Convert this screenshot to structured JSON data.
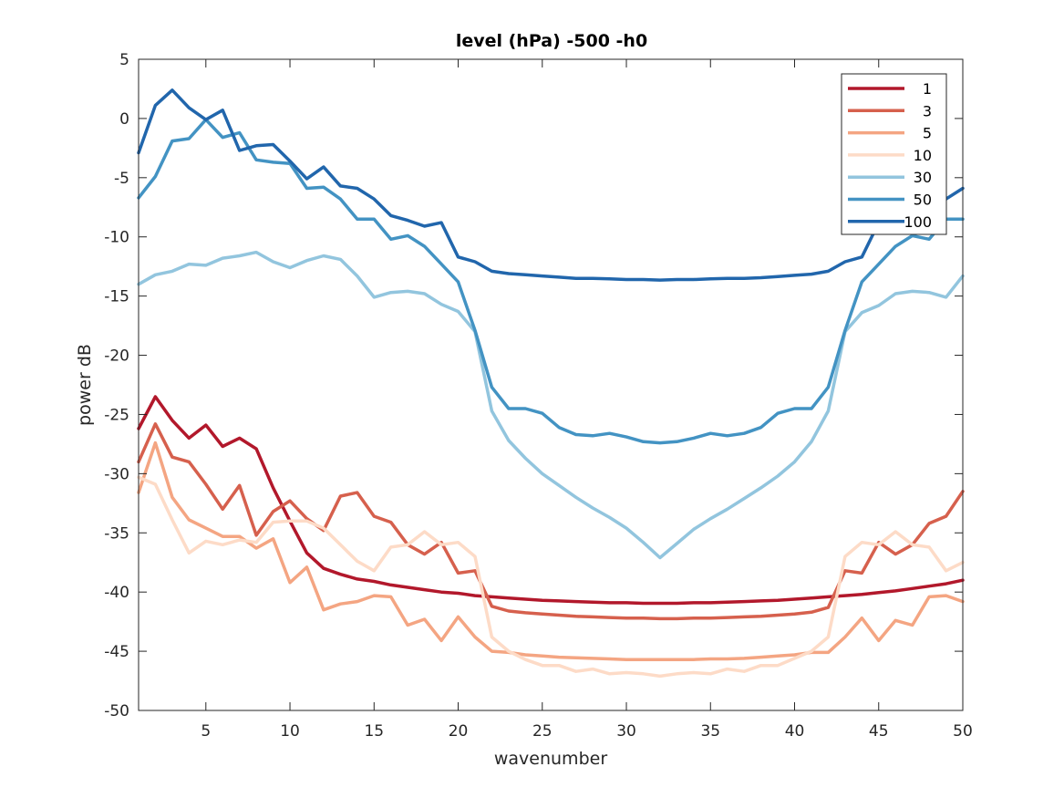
{
  "chart_data": {
    "type": "line",
    "title": "level (hPa) -500 -h0",
    "xlabel": "wavenumber",
    "ylabel": "power dB",
    "xlim": [
      1,
      50
    ],
    "ylim": [
      -50,
      5
    ],
    "xticks": [
      5,
      10,
      15,
      20,
      25,
      30,
      35,
      40,
      45,
      50
    ],
    "yticks": [
      5,
      0,
      -5,
      -10,
      -15,
      -20,
      -25,
      -30,
      -35,
      -40,
      -45,
      -50
    ],
    "grid": false,
    "legend_position": "top-right",
    "x": [
      1,
      2,
      3,
      4,
      5,
      6,
      7,
      8,
      9,
      10,
      11,
      12,
      13,
      14,
      15,
      16,
      17,
      18,
      19,
      20,
      21,
      22,
      23,
      24,
      25,
      26,
      27,
      28,
      29,
      30,
      31,
      32,
      33,
      34,
      35,
      36,
      37,
      38,
      39,
      40,
      41,
      42,
      43,
      44,
      45,
      46,
      47,
      48,
      49,
      50
    ],
    "series": [
      {
        "name": "1",
        "color": "#b2182b",
        "values": [
          -26.2,
          -23.5,
          -25.5,
          -27.0,
          -25.9,
          -27.7,
          -27.0,
          -27.9,
          -31.2,
          -34.0,
          -36.7,
          -38.0,
          -38.5,
          -38.9,
          -39.1,
          -39.4,
          -39.6,
          -39.8,
          -40.0,
          -40.1,
          -40.3,
          -40.4,
          -40.5,
          -40.6,
          -40.7,
          -40.75,
          -40.8,
          -40.85,
          -40.9,
          -40.9,
          -40.95,
          -40.95,
          -40.95,
          -40.9,
          -40.9,
          -40.85,
          -40.8,
          -40.75,
          -40.7,
          -40.6,
          -40.5,
          -40.4,
          -40.3,
          -40.2,
          -40.05,
          -39.9,
          -39.7,
          -39.5,
          -39.3,
          -39.0
        ]
      },
      {
        "name": "3",
        "color": "#d6604d",
        "values": [
          -29.0,
          -25.8,
          -28.6,
          -29.0,
          -30.9,
          -33.0,
          -31.0,
          -35.2,
          -33.2,
          -32.3,
          -33.8,
          -34.8,
          -31.9,
          -31.6,
          -33.6,
          -34.1,
          -36.0,
          -36.8,
          -35.8,
          -38.4,
          -38.2,
          -41.2,
          -41.6,
          -41.75,
          -41.85,
          -41.95,
          -42.05,
          -42.1,
          -42.15,
          -42.2,
          -42.2,
          -42.25,
          -42.25,
          -42.2,
          -42.2,
          -42.15,
          -42.1,
          -42.05,
          -41.95,
          -41.85,
          -41.7,
          -41.3,
          -38.2,
          -38.4,
          -35.8,
          -36.8,
          -36.0,
          -34.2,
          -33.6,
          -31.5
        ]
      },
      {
        "name": "5",
        "color": "#f4a582",
        "values": [
          -31.6,
          -27.4,
          -32.0,
          -33.9,
          -34.6,
          -35.3,
          -35.3,
          -36.3,
          -35.5,
          -39.2,
          -37.9,
          -41.5,
          -41.0,
          -40.8,
          -40.3,
          -40.4,
          -42.8,
          -42.3,
          -44.1,
          -42.1,
          -43.8,
          -45.0,
          -45.1,
          -45.3,
          -45.4,
          -45.5,
          -45.55,
          -45.6,
          -45.65,
          -45.7,
          -45.7,
          -45.7,
          -45.7,
          -45.7,
          -45.65,
          -45.65,
          -45.6,
          -45.5,
          -45.4,
          -45.3,
          -45.1,
          -45.1,
          -43.8,
          -42.2,
          -44.1,
          -42.4,
          -42.8,
          -40.4,
          -40.3,
          -40.8
        ]
      },
      {
        "name": "10",
        "color": "#fddbc7",
        "values": [
          -30.3,
          -30.9,
          -33.9,
          -36.7,
          -35.7,
          -36.0,
          -35.6,
          -35.8,
          -34.1,
          -34.0,
          -34.0,
          -34.6,
          -36.0,
          -37.4,
          -38.2,
          -36.2,
          -36.0,
          -34.9,
          -36.0,
          -35.8,
          -37.0,
          -43.8,
          -45.0,
          -45.7,
          -46.2,
          -46.2,
          -46.7,
          -46.5,
          -46.9,
          -46.8,
          -46.9,
          -47.1,
          -46.9,
          -46.8,
          -46.9,
          -46.5,
          -46.7,
          -46.2,
          -46.2,
          -45.6,
          -45.0,
          -43.8,
          -37.0,
          -35.8,
          -36.0,
          -34.9,
          -36.0,
          -36.2,
          -38.2,
          -37.5
        ]
      },
      {
        "name": "30",
        "color": "#92c5de",
        "values": [
          -14.0,
          -13.2,
          -12.9,
          -12.3,
          -12.4,
          -11.8,
          -11.6,
          -11.3,
          -12.1,
          -12.6,
          -12.0,
          -11.6,
          -11.9,
          -13.3,
          -15.1,
          -14.7,
          -14.6,
          -14.8,
          -15.7,
          -16.3,
          -18.0,
          -24.7,
          -27.2,
          -28.7,
          -30.0,
          -31.0,
          -32.0,
          -32.9,
          -33.7,
          -34.6,
          -35.8,
          -37.1,
          -35.9,
          -34.7,
          -33.8,
          -33.0,
          -32.1,
          -31.2,
          -30.2,
          -29.0,
          -27.3,
          -24.7,
          -18.0,
          -16.4,
          -15.8,
          -14.8,
          -14.6,
          -14.7,
          -15.1,
          -13.3
        ]
      },
      {
        "name": "50",
        "color": "#4393c3",
        "values": [
          -6.7,
          -4.9,
          -1.9,
          -1.7,
          -0.1,
          -1.6,
          -1.2,
          -3.5,
          -3.7,
          -3.8,
          -5.9,
          -5.8,
          -6.8,
          -8.5,
          -8.5,
          -10.2,
          -9.9,
          -10.8,
          -12.3,
          -13.8,
          -17.9,
          -22.7,
          -24.5,
          -24.5,
          -24.9,
          -26.1,
          -26.7,
          -26.8,
          -26.6,
          -26.9,
          -27.3,
          -27.4,
          -27.3,
          -27.0,
          -26.6,
          -26.8,
          -26.6,
          -26.1,
          -24.9,
          -24.5,
          -24.5,
          -22.7,
          -17.9,
          -13.8,
          -12.3,
          -10.8,
          -9.9,
          -10.2,
          -8.5,
          -8.5
        ]
      },
      {
        "name": "100",
        "color": "#2166ac",
        "values": [
          -2.9,
          1.1,
          2.4,
          0.9,
          -0.1,
          0.7,
          -2.7,
          -2.3,
          -2.2,
          -3.6,
          -5.1,
          -4.1,
          -5.7,
          -5.9,
          -6.8,
          -8.2,
          -8.6,
          -9.1,
          -8.8,
          -11.7,
          -12.1,
          -12.9,
          -13.1,
          -13.2,
          -13.3,
          -13.4,
          -13.5,
          -13.5,
          -13.55,
          -13.6,
          -13.6,
          -13.65,
          -13.6,
          -13.6,
          -13.55,
          -13.5,
          -13.5,
          -13.45,
          -13.35,
          -13.25,
          -13.15,
          -12.9,
          -12.1,
          -11.7,
          -8.8,
          -9.1,
          -8.6,
          -8.2,
          -6.8,
          -5.9
        ]
      }
    ]
  }
}
